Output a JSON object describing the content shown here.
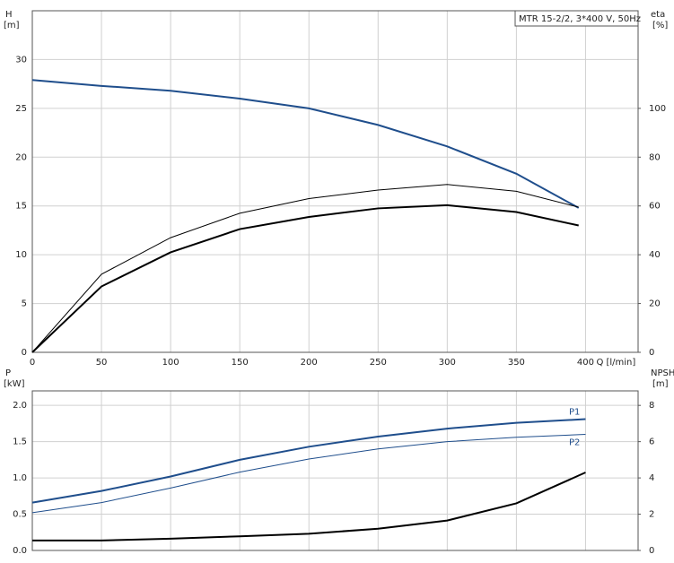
{
  "chart_data": [
    {
      "type": "line",
      "title": "MTR 15-2/2, 3*400 V, 50Hz",
      "x": [
        0,
        50,
        100,
        150,
        200,
        250,
        300,
        350,
        395
      ],
      "xlim": [
        0,
        438
      ],
      "xticks": [
        0,
        50,
        100,
        150,
        200,
        250,
        300,
        350,
        400
      ],
      "xtick_labels": true,
      "xlabel": "Q [l/min]",
      "ylim": [
        0,
        35
      ],
      "yticks": [
        0,
        5,
        10,
        15,
        20,
        25,
        30
      ],
      "ylabel": {
        "name": "H",
        "unit": "[m]"
      },
      "y2lim": [
        0,
        140
      ],
      "y2ticks": [
        0,
        20,
        40,
        60,
        80,
        100
      ],
      "y2label": {
        "name": "eta",
        "unit": "[%]"
      },
      "grid": true,
      "series": [
        {
          "color": "#1f4e8c",
          "width": 2,
          "values": [
            27.9,
            27.3,
            26.8,
            26.0,
            25.0,
            23.3,
            21.1,
            18.3,
            14.8
          ]
        },
        {
          "color": "#000000",
          "width": 1,
          "axis": "y2",
          "values": [
            0,
            32,
            47,
            57,
            63,
            66.5,
            68.8,
            66,
            59.5
          ]
        },
        {
          "color": "#000000",
          "width": 2,
          "axis": "y2",
          "values": [
            0,
            27,
            41,
            50.5,
            55.5,
            59,
            60.3,
            57.5,
            52
          ]
        }
      ]
    },
    {
      "type": "line",
      "x": [
        0,
        50,
        100,
        150,
        200,
        250,
        300,
        350,
        400
      ],
      "xlim": [
        0,
        438
      ],
      "xticks": [
        0,
        50,
        100,
        150,
        200,
        250,
        300,
        350,
        400
      ],
      "xtick_labels": false,
      "ylim": [
        0,
        2.2
      ],
      "yticks": [
        {
          "value": 0,
          "label": "0.0"
        },
        0.5,
        {
          "value": 1,
          "label": "1.0"
        },
        1.5,
        {
          "value": 2,
          "label": "2.0"
        }
      ],
      "ylabel": {
        "name": "P",
        "unit": "[kW]"
      },
      "y2lim": [
        0,
        8.8
      ],
      "y2ticks": [
        0,
        2,
        4,
        6,
        8
      ],
      "y2label": {
        "name": "NPSH",
        "unit": "[m]"
      },
      "grid": true,
      "series": [
        {
          "name": "P1",
          "color": "#1f4e8c",
          "width": 2,
          "values": [
            0.66,
            0.82,
            1.02,
            1.25,
            1.43,
            1.57,
            1.68,
            1.76,
            1.81
          ]
        },
        {
          "name": "P2",
          "color": "#1f4e8c",
          "width": 1,
          "values": [
            0.52,
            0.66,
            0.86,
            1.08,
            1.26,
            1.4,
            1.5,
            1.56,
            1.6
          ]
        },
        {
          "color": "#000000",
          "width": 2,
          "axis": "y2",
          "values": [
            0.55,
            0.55,
            0.65,
            0.78,
            0.92,
            1.2,
            1.65,
            2.6,
            4.3
          ]
        }
      ]
    }
  ]
}
